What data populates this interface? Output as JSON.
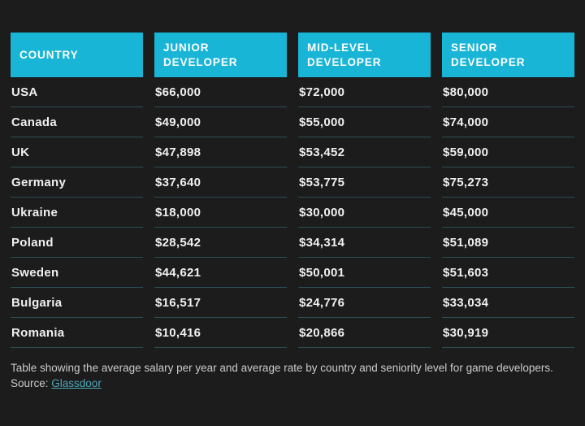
{
  "theme": {
    "page_background": "#1c1c1d",
    "header_background": "#18b5d6",
    "header_text_color": "#ffffff",
    "cell_text_color": "#f0f0f0",
    "row_separator_color": "#2d4e57",
    "caption_text_color": "#cbcbcb",
    "link_color": "#4fa8b8"
  },
  "chart_data": {
    "type": "table",
    "columns": [
      "COUNTRY",
      "JUNIOR DEVELOPER",
      "MID-LEVEL DEVELOPER",
      "SENIOR DEVELOPER"
    ],
    "rows": [
      [
        "USA",
        "$66,000",
        "$72,000",
        "$80,000"
      ],
      [
        "Canada",
        "$49,000",
        "$55,000",
        "$74,000"
      ],
      [
        "UK",
        "$47,898",
        "$53,452",
        "$59,000"
      ],
      [
        "Germany",
        "$37,640",
        "$53,775",
        "$75,273"
      ],
      [
        "Ukraine",
        "$18,000",
        "$30,000",
        "$45,000"
      ],
      [
        "Poland",
        "$28,542",
        "$34,314",
        "$51,089"
      ],
      [
        "Sweden",
        "$44,621",
        "$50,001",
        "$51,603"
      ],
      [
        "Bulgaria",
        "$16,517",
        "$24,776",
        "$33,034"
      ],
      [
        "Romania",
        "$10,416",
        "$20,866",
        "$30,919"
      ]
    ],
    "caption": "Table showing the average salary per year and average rate by country and seniority level for game developers. Source: Glassdoor"
  },
  "caption": {
    "text": "Table showing the average salary per year and average rate by country and seniority level for game developers. Source: ",
    "link_label": "Glassdoor"
  }
}
